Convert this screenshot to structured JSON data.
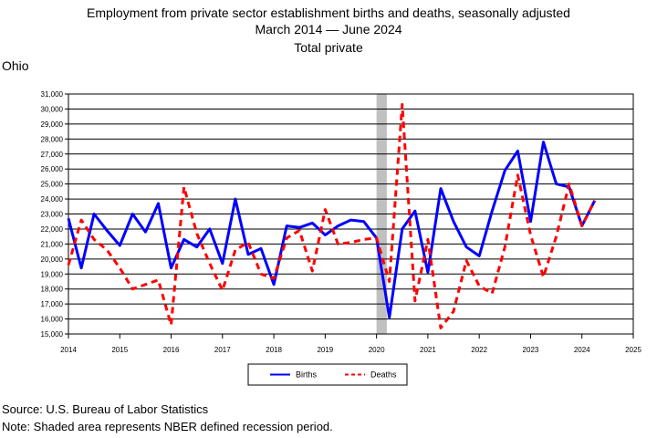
{
  "title": {
    "line1": "Employment from private sector establishment births and deaths, seasonally adjusted",
    "line2": "March 2014  — June 2024",
    "line3": "Total private"
  },
  "subtitle": "Ohio",
  "footer": {
    "source": "Source: U.S. Bureau of Labor Statistics",
    "note": "Note: Shaded area represents NBER defined recession period."
  },
  "chart_data": {
    "type": "line",
    "xlim": [
      2014,
      2025
    ],
    "ylim": [
      15000,
      31000
    ],
    "x_ticks": [
      "2014",
      "2015",
      "2016",
      "2017",
      "2018",
      "2019",
      "2020",
      "2021",
      "2022",
      "2023",
      "2024",
      "2025"
    ],
    "y_ticks": [
      "15,000",
      "16,000",
      "17,000",
      "18,000",
      "19,000",
      "20,000",
      "21,000",
      "22,000",
      "23,000",
      "24,000",
      "25,000",
      "26,000",
      "27,000",
      "28,000",
      "29,000",
      "30,000",
      "31,000"
    ],
    "grid": "horizontal",
    "legend_position": "bottom-center",
    "recession_band": [
      2020.0,
      2020.2
    ],
    "recession_color": "#c0c0c0",
    "series": [
      {
        "name": "Births",
        "color": "#0000ff",
        "style": "solid",
        "x": [
          2014.0,
          2014.25,
          2014.5,
          2014.75,
          2015.0,
          2015.25,
          2015.5,
          2015.75,
          2016.0,
          2016.25,
          2016.5,
          2016.75,
          2017.0,
          2017.25,
          2017.5,
          2017.75,
          2018.0,
          2018.25,
          2018.5,
          2018.75,
          2019.0,
          2019.25,
          2019.5,
          2019.75,
          2020.0,
          2020.25,
          2020.5,
          2020.75,
          2021.0,
          2021.25,
          2021.5,
          2021.75,
          2022.0,
          2022.25,
          2022.5,
          2022.75,
          2023.0,
          2023.25,
          2023.5,
          2023.75,
          2024.0,
          2024.25
        ],
        "values": [
          22700,
          19400,
          23000,
          21900,
          20900,
          23000,
          21800,
          23700,
          19400,
          21300,
          20800,
          22000,
          19700,
          24000,
          20300,
          20700,
          18300,
          22200,
          22100,
          22400,
          21600,
          22200,
          22600,
          22500,
          21400,
          16100,
          22000,
          23200,
          19100,
          24700,
          22500,
          20800,
          20200,
          23200,
          25900,
          27200,
          22500,
          27800,
          25000,
          24800,
          22200,
          23900
        ]
      },
      {
        "name": "Deaths",
        "color": "#ff0000",
        "style": "dashed",
        "x": [
          2014.0,
          2014.25,
          2014.5,
          2014.75,
          2015.0,
          2015.25,
          2015.5,
          2015.75,
          2016.0,
          2016.25,
          2016.5,
          2016.75,
          2017.0,
          2017.25,
          2017.5,
          2017.75,
          2018.0,
          2018.25,
          2018.5,
          2018.75,
          2019.0,
          2019.25,
          2019.5,
          2019.75,
          2020.0,
          2020.25,
          2020.5,
          2020.75,
          2021.0,
          2021.25,
          2021.5,
          2021.75,
          2022.0,
          2022.25,
          2022.5,
          2022.75,
          2023.0,
          2023.25,
          2023.5,
          2023.75,
          2024.0,
          2024.25
        ],
        "values": [
          19600,
          22600,
          21300,
          20600,
          19400,
          18000,
          18300,
          18600,
          15600,
          24800,
          21700,
          19700,
          17900,
          20600,
          21100,
          19000,
          18700,
          21400,
          21900,
          19200,
          23300,
          21000,
          21100,
          21300,
          21400,
          18500,
          30300,
          17200,
          21300,
          15400,
          16500,
          19900,
          18200,
          17700,
          20800,
          25600,
          21600,
          18800,
          21500,
          25000,
          22200,
          23900
        ]
      }
    ]
  }
}
